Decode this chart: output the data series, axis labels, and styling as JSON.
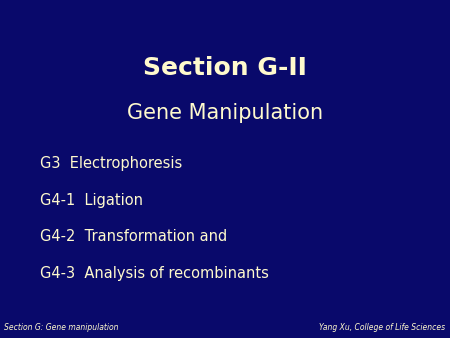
{
  "background_color": "#09096b",
  "title_line1": "Section G-II",
  "title_line2": "Gene Manipulation",
  "title_color": "#FFFACD",
  "title_line1_fontsize": 18,
  "title_line2_fontsize": 15,
  "body_items": [
    "G3  Electrophoresis",
    "G4-1  Ligation",
    "G4-2  Transformation and",
    "G4-3  Analysis of recombinants"
  ],
  "body_color": "#FFFACD",
  "body_fontsize": 10.5,
  "footer_left": "Section G: Gene manipulation",
  "footer_right": "Yang Xu, College of Life Sciences",
  "footer_color": "#FFFACD",
  "footer_fontsize": 5.5
}
